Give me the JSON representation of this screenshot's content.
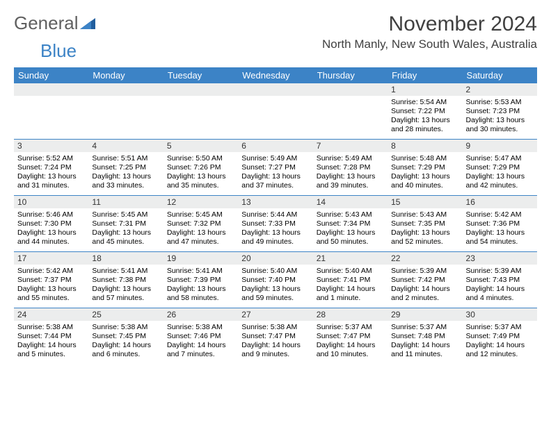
{
  "logo": {
    "text1": "General",
    "text2": "Blue"
  },
  "title": "November 2024",
  "location": "North Manly, New South Wales, Australia",
  "colors": {
    "header_bg": "#3c83c6",
    "header_text": "#ffffff",
    "daynum_bg": "#eceded",
    "row_border": "#3c83c6",
    "title_color": "#404040"
  },
  "weekdays": [
    "Sunday",
    "Monday",
    "Tuesday",
    "Wednesday",
    "Thursday",
    "Friday",
    "Saturday"
  ],
  "weeks": [
    [
      {
        "num": "",
        "sunrise": "",
        "sunset": "",
        "daylight": ""
      },
      {
        "num": "",
        "sunrise": "",
        "sunset": "",
        "daylight": ""
      },
      {
        "num": "",
        "sunrise": "",
        "sunset": "",
        "daylight": ""
      },
      {
        "num": "",
        "sunrise": "",
        "sunset": "",
        "daylight": ""
      },
      {
        "num": "",
        "sunrise": "",
        "sunset": "",
        "daylight": ""
      },
      {
        "num": "1",
        "sunrise": "Sunrise: 5:54 AM",
        "sunset": "Sunset: 7:22 PM",
        "daylight": "Daylight: 13 hours and 28 minutes."
      },
      {
        "num": "2",
        "sunrise": "Sunrise: 5:53 AM",
        "sunset": "Sunset: 7:23 PM",
        "daylight": "Daylight: 13 hours and 30 minutes."
      }
    ],
    [
      {
        "num": "3",
        "sunrise": "Sunrise: 5:52 AM",
        "sunset": "Sunset: 7:24 PM",
        "daylight": "Daylight: 13 hours and 31 minutes."
      },
      {
        "num": "4",
        "sunrise": "Sunrise: 5:51 AM",
        "sunset": "Sunset: 7:25 PM",
        "daylight": "Daylight: 13 hours and 33 minutes."
      },
      {
        "num": "5",
        "sunrise": "Sunrise: 5:50 AM",
        "sunset": "Sunset: 7:26 PM",
        "daylight": "Daylight: 13 hours and 35 minutes."
      },
      {
        "num": "6",
        "sunrise": "Sunrise: 5:49 AM",
        "sunset": "Sunset: 7:27 PM",
        "daylight": "Daylight: 13 hours and 37 minutes."
      },
      {
        "num": "7",
        "sunrise": "Sunrise: 5:49 AM",
        "sunset": "Sunset: 7:28 PM",
        "daylight": "Daylight: 13 hours and 39 minutes."
      },
      {
        "num": "8",
        "sunrise": "Sunrise: 5:48 AM",
        "sunset": "Sunset: 7:29 PM",
        "daylight": "Daylight: 13 hours and 40 minutes."
      },
      {
        "num": "9",
        "sunrise": "Sunrise: 5:47 AM",
        "sunset": "Sunset: 7:29 PM",
        "daylight": "Daylight: 13 hours and 42 minutes."
      }
    ],
    [
      {
        "num": "10",
        "sunrise": "Sunrise: 5:46 AM",
        "sunset": "Sunset: 7:30 PM",
        "daylight": "Daylight: 13 hours and 44 minutes."
      },
      {
        "num": "11",
        "sunrise": "Sunrise: 5:45 AM",
        "sunset": "Sunset: 7:31 PM",
        "daylight": "Daylight: 13 hours and 45 minutes."
      },
      {
        "num": "12",
        "sunrise": "Sunrise: 5:45 AM",
        "sunset": "Sunset: 7:32 PM",
        "daylight": "Daylight: 13 hours and 47 minutes."
      },
      {
        "num": "13",
        "sunrise": "Sunrise: 5:44 AM",
        "sunset": "Sunset: 7:33 PM",
        "daylight": "Daylight: 13 hours and 49 minutes."
      },
      {
        "num": "14",
        "sunrise": "Sunrise: 5:43 AM",
        "sunset": "Sunset: 7:34 PM",
        "daylight": "Daylight: 13 hours and 50 minutes."
      },
      {
        "num": "15",
        "sunrise": "Sunrise: 5:43 AM",
        "sunset": "Sunset: 7:35 PM",
        "daylight": "Daylight: 13 hours and 52 minutes."
      },
      {
        "num": "16",
        "sunrise": "Sunrise: 5:42 AM",
        "sunset": "Sunset: 7:36 PM",
        "daylight": "Daylight: 13 hours and 54 minutes."
      }
    ],
    [
      {
        "num": "17",
        "sunrise": "Sunrise: 5:42 AM",
        "sunset": "Sunset: 7:37 PM",
        "daylight": "Daylight: 13 hours and 55 minutes."
      },
      {
        "num": "18",
        "sunrise": "Sunrise: 5:41 AM",
        "sunset": "Sunset: 7:38 PM",
        "daylight": "Daylight: 13 hours and 57 minutes."
      },
      {
        "num": "19",
        "sunrise": "Sunrise: 5:41 AM",
        "sunset": "Sunset: 7:39 PM",
        "daylight": "Daylight: 13 hours and 58 minutes."
      },
      {
        "num": "20",
        "sunrise": "Sunrise: 5:40 AM",
        "sunset": "Sunset: 7:40 PM",
        "daylight": "Daylight: 13 hours and 59 minutes."
      },
      {
        "num": "21",
        "sunrise": "Sunrise: 5:40 AM",
        "sunset": "Sunset: 7:41 PM",
        "daylight": "Daylight: 14 hours and 1 minute."
      },
      {
        "num": "22",
        "sunrise": "Sunrise: 5:39 AM",
        "sunset": "Sunset: 7:42 PM",
        "daylight": "Daylight: 14 hours and 2 minutes."
      },
      {
        "num": "23",
        "sunrise": "Sunrise: 5:39 AM",
        "sunset": "Sunset: 7:43 PM",
        "daylight": "Daylight: 14 hours and 4 minutes."
      }
    ],
    [
      {
        "num": "24",
        "sunrise": "Sunrise: 5:38 AM",
        "sunset": "Sunset: 7:44 PM",
        "daylight": "Daylight: 14 hours and 5 minutes."
      },
      {
        "num": "25",
        "sunrise": "Sunrise: 5:38 AM",
        "sunset": "Sunset: 7:45 PM",
        "daylight": "Daylight: 14 hours and 6 minutes."
      },
      {
        "num": "26",
        "sunrise": "Sunrise: 5:38 AM",
        "sunset": "Sunset: 7:46 PM",
        "daylight": "Daylight: 14 hours and 7 minutes."
      },
      {
        "num": "27",
        "sunrise": "Sunrise: 5:38 AM",
        "sunset": "Sunset: 7:47 PM",
        "daylight": "Daylight: 14 hours and 9 minutes."
      },
      {
        "num": "28",
        "sunrise": "Sunrise: 5:37 AM",
        "sunset": "Sunset: 7:47 PM",
        "daylight": "Daylight: 14 hours and 10 minutes."
      },
      {
        "num": "29",
        "sunrise": "Sunrise: 5:37 AM",
        "sunset": "Sunset: 7:48 PM",
        "daylight": "Daylight: 14 hours and 11 minutes."
      },
      {
        "num": "30",
        "sunrise": "Sunrise: 5:37 AM",
        "sunset": "Sunset: 7:49 PM",
        "daylight": "Daylight: 14 hours and 12 minutes."
      }
    ]
  ]
}
